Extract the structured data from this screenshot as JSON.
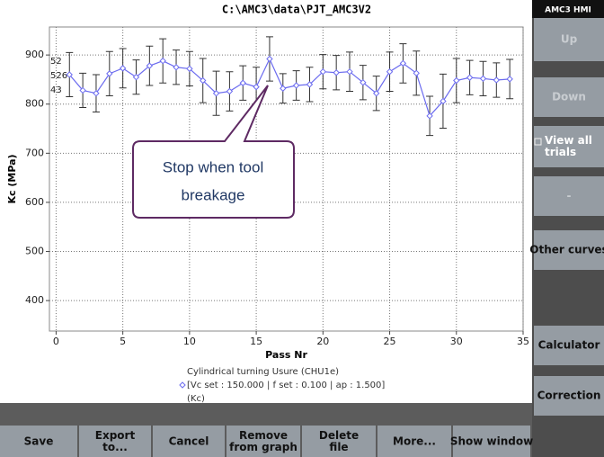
{
  "window": {
    "title": "C:\\AMC3\\data\\PJT_AMC3V2"
  },
  "side_panel": {
    "header": "AMC3 HMI",
    "buttons": [
      [
        "Up"
      ],
      [
        "Down"
      ],
      [
        "View all",
        "trials"
      ],
      [
        "-"
      ],
      [
        "Other curves"
      ],
      [
        "Calculator"
      ],
      [
        "Correction"
      ]
    ]
  },
  "bottom_buttons": [
    [
      "Save"
    ],
    [
      "Export",
      "to..."
    ],
    [
      "Cancel"
    ],
    [
      "Remove",
      "from graph"
    ],
    [
      "Delete",
      "file"
    ],
    [
      "More..."
    ],
    [
      "Show window"
    ]
  ],
  "annotation": [
    "Stop when tool",
    "breakage"
  ],
  "clipped_labels": [
    "52",
    "526",
    "43"
  ],
  "chart_data": {
    "type": "line",
    "title": "C:\\AMC3\\data\\PJT_AMC3V2",
    "x_label": "Pass Nr",
    "y_label": "Kc (MPa)",
    "legend_title": "Cylindrical turning Usure (CHU1e)",
    "legend_subtitle": "(Kc)",
    "x": [
      1,
      2,
      3,
      4,
      5,
      6,
      7,
      8,
      9,
      10,
      11,
      12,
      13,
      14,
      15,
      16,
      17,
      18,
      19,
      20,
      21,
      22,
      23,
      24,
      25,
      26,
      27,
      28,
      29,
      30,
      31,
      32,
      33,
      34
    ],
    "series": [
      {
        "name": "[Vc set : 150.000 | f set : 0.100 | ap : 1.500]",
        "color": "#6b6bef",
        "values": [
          860,
          828,
          822,
          862,
          873,
          855,
          878,
          888,
          875,
          872,
          848,
          822,
          826,
          843,
          835,
          892,
          832,
          838,
          840,
          866,
          864,
          866,
          844,
          822,
          866,
          883,
          863,
          776,
          806,
          848,
          854,
          852,
          849,
          851
        ],
        "errors": [
          45,
          35,
          38,
          45,
          40,
          35,
          40,
          45,
          35,
          35,
          45,
          45,
          40,
          35,
          40,
          45,
          30,
          30,
          35,
          35,
          35,
          40,
          35,
          35,
          40,
          40,
          45,
          40,
          55,
          45,
          35,
          35,
          35,
          40
        ]
      }
    ],
    "xlim": [
      -0.5,
      35
    ],
    "ylim": [
      338,
      957
    ],
    "xticks": [
      0,
      5,
      10,
      15,
      20,
      25,
      30,
      35
    ],
    "yticks": [
      400,
      500,
      600,
      700,
      800,
      900
    ],
    "grid": true
  }
}
